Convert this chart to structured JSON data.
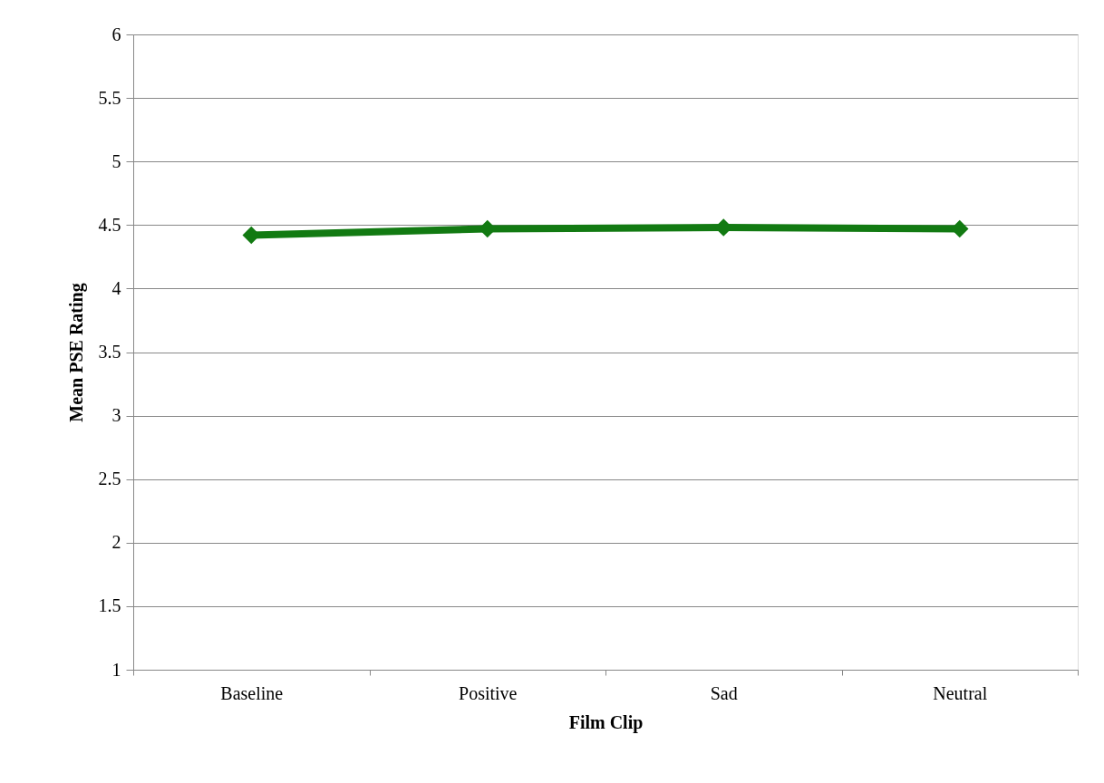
{
  "chart_data": {
    "type": "line",
    "xlabel": "Film Clip",
    "ylabel": "Mean PSE Rating",
    "categories": [
      "Baseline",
      "Positive",
      "Sad",
      "Neutral"
    ],
    "series": [
      {
        "color": "#127a12",
        "values": [
          4.42,
          4.47,
          4.48,
          4.47
        ]
      }
    ],
    "ylim": [
      1,
      6
    ],
    "yticks": [
      1,
      1.5,
      2,
      2.5,
      3,
      3.5,
      4,
      4.5,
      5,
      5.5,
      6
    ],
    "grid": "y",
    "marker": "diamond",
    "line_style": "solid"
  }
}
